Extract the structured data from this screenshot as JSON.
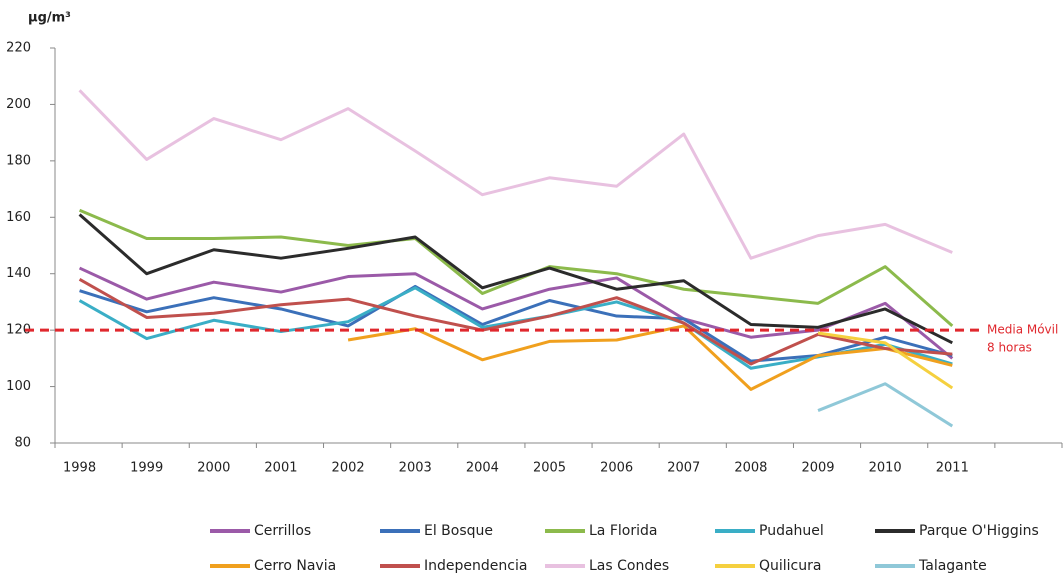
{
  "chart_data": {
    "type": "line",
    "y_label": "µg/m³",
    "categories": [
      "1998",
      "1999",
      "2000",
      "2001",
      "2002",
      "2003",
      "2004",
      "2005",
      "2006",
      "2007",
      "2008",
      "2009",
      "2010",
      "2011"
    ],
    "ylim": [
      80,
      220
    ],
    "yticks": [
      80,
      100,
      120,
      140,
      160,
      180,
      200,
      220
    ],
    "reference_line": {
      "value": 120,
      "label_lines": [
        "Media Móvil",
        "8 horas"
      ],
      "color": "#e0282e"
    },
    "series": [
      {
        "name": "Cerrillos",
        "color": "#9b5aa8",
        "values": [
          142,
          131,
          137,
          133.5,
          139,
          140,
          127.5,
          134.5,
          138.5,
          124,
          117.5,
          120,
          129.5,
          110
        ]
      },
      {
        "name": "El Bosque",
        "color": "#3b70b9",
        "values": [
          134,
          126.5,
          131.5,
          127.5,
          121.5,
          135.5,
          122,
          130.5,
          125,
          124,
          109,
          111,
          117.5,
          111
        ]
      },
      {
        "name": "La Florida",
        "color": "#8cba4c",
        "values": [
          162.5,
          152.5,
          152.5,
          153,
          150,
          152.5,
          133,
          142.5,
          140,
          134.5,
          132,
          129.5,
          142.5,
          121.5
        ]
      },
      {
        "name": "Pudahuel",
        "color": "#3aaec6",
        "values": [
          130.5,
          117,
          123.5,
          119.5,
          123,
          135,
          121,
          125,
          130,
          122.5,
          106.5,
          110.5,
          115,
          108
        ]
      },
      {
        "name": "Parque O'Higgins",
        "color": "#2b2b2b",
        "values": [
          161,
          140,
          148.5,
          145.5,
          149,
          153,
          135,
          142,
          134.5,
          137.5,
          122,
          121,
          127.5,
          115.5
        ]
      },
      {
        "name": "Cerro Navia",
        "color": "#f0a01e",
        "values": [
          null,
          null,
          null,
          null,
          116.5,
          120.5,
          109.5,
          116,
          116.5,
          121.5,
          99,
          111,
          113.5,
          107.5
        ]
      },
      {
        "name": "Independencia",
        "color": "#c0504d",
        "values": [
          138,
          124.5,
          126,
          129,
          131,
          125,
          120,
          125,
          131.5,
          122.5,
          108,
          118.5,
          113.5,
          111.5
        ]
      },
      {
        "name": "Las Condes",
        "color": "#e8c1e0",
        "values": [
          205,
          180.5,
          195,
          187.5,
          198.5,
          183.5,
          168,
          174,
          171,
          189.5,
          145.5,
          153.5,
          157.5,
          147.5
        ]
      },
      {
        "name": "Quilicura",
        "color": "#f5d03f",
        "values": [
          null,
          null,
          null,
          null,
          null,
          null,
          null,
          null,
          null,
          null,
          null,
          119,
          115.5,
          99.5
        ]
      },
      {
        "name": "Talagante",
        "color": "#8fc8d8",
        "values": [
          null,
          null,
          null,
          null,
          null,
          null,
          null,
          null,
          null,
          null,
          null,
          91.5,
          101,
          86
        ]
      }
    ]
  }
}
